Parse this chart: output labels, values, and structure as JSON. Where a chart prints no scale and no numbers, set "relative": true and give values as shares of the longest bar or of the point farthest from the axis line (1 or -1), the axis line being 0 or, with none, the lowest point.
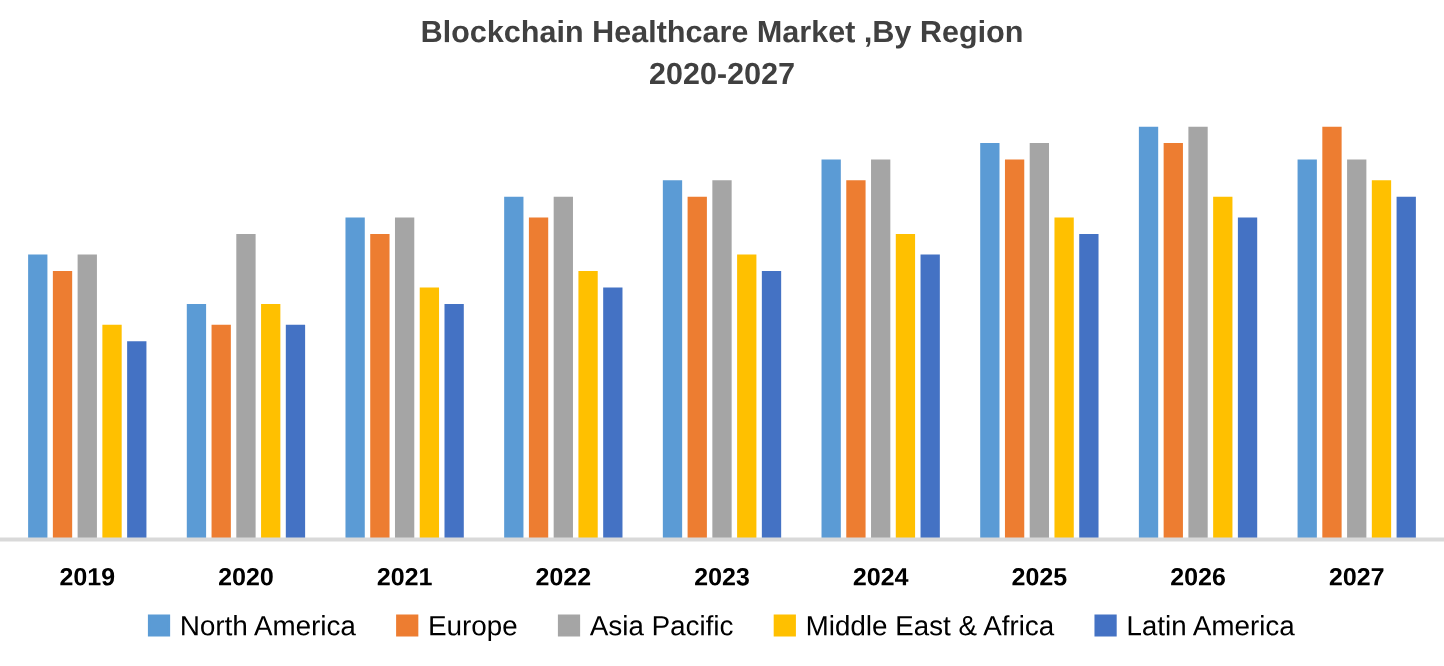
{
  "chart_data": {
    "type": "bar",
    "title": "Blockchain Healthcare Market ,By Region\n2020-2027",
    "relative": true,
    "categories": [
      "2019",
      "2020",
      "2021",
      "2022",
      "2023",
      "2024",
      "2025",
      "2026",
      "2027"
    ],
    "series": [
      {
        "name": "North America",
        "color": "#5b9bd5",
        "values": [
          0.69,
          0.57,
          0.78,
          0.83,
          0.87,
          0.92,
          0.96,
          1,
          0.92
        ]
      },
      {
        "name": "Europe",
        "color": "#ed7d31",
        "values": [
          0.65,
          0.52,
          0.74,
          0.78,
          0.83,
          0.87,
          0.92,
          0.96,
          1
        ]
      },
      {
        "name": "Asia Pacific",
        "color": "#a5a5a5",
        "values": [
          0.69,
          0.74,
          0.78,
          0.83,
          0.87,
          0.92,
          0.96,
          1,
          0.92
        ]
      },
      {
        "name": "Middle East & Africa",
        "color": "#ffc000",
        "values": [
          0.52,
          0.57,
          0.61,
          0.65,
          0.69,
          0.74,
          0.78,
          0.83,
          0.87
        ]
      },
      {
        "name": "Latin America",
        "color": "#4472c4",
        "values": [
          0.48,
          0.52,
          0.57,
          0.61,
          0.65,
          0.69,
          0.74,
          0.78,
          0.83
        ]
      }
    ],
    "grid": false,
    "legend": "bottom"
  }
}
